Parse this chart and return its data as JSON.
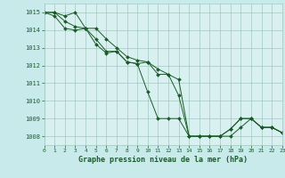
{
  "title": "Graphe pression niveau de la mer (hPa)",
  "background_color": "#c8eaea",
  "plot_bg_color": "#d8f0f0",
  "grid_color": "#a0c8c0",
  "line_color": "#1a5c28",
  "marker_color": "#1a5c28",
  "xlim": [
    0,
    23
  ],
  "ylim": [
    1007.5,
    1015.5
  ],
  "yticks": [
    1008,
    1009,
    1010,
    1011,
    1012,
    1013,
    1014,
    1015
  ],
  "xticks": [
    0,
    1,
    2,
    3,
    4,
    5,
    6,
    7,
    8,
    9,
    10,
    11,
    12,
    13,
    14,
    15,
    16,
    17,
    18,
    19,
    20,
    21,
    22,
    23
  ],
  "series": [
    [
      1015.0,
      1015.0,
      1014.8,
      1015.0,
      1014.1,
      1014.1,
      1013.5,
      1013.0,
      1012.5,
      1012.3,
      1012.2,
      1011.8,
      1011.5,
      1011.2,
      1008.0,
      1008.0,
      1008.0,
      1008.0,
      1008.0,
      1008.5,
      1009.0,
      1008.5,
      1008.5,
      1008.2
    ],
    [
      1015.0,
      1015.0,
      1014.5,
      1014.2,
      1014.1,
      1013.5,
      1012.8,
      1012.8,
      1012.2,
      1012.1,
      1012.2,
      1011.5,
      1011.5,
      1010.3,
      1008.0,
      1008.0,
      1008.0,
      1008.0,
      1008.4,
      1009.0,
      1009.0,
      1008.5,
      1008.5,
      1008.2
    ],
    [
      1015.0,
      1014.8,
      1014.1,
      1014.0,
      1014.1,
      1013.2,
      1012.7,
      1012.8,
      1012.2,
      1012.1,
      1010.5,
      1009.0,
      1009.0,
      1009.0,
      1008.0,
      1008.0,
      1008.0,
      1008.0,
      1008.4,
      1009.0,
      1009.0,
      1008.5,
      1008.5,
      1008.2
    ]
  ]
}
